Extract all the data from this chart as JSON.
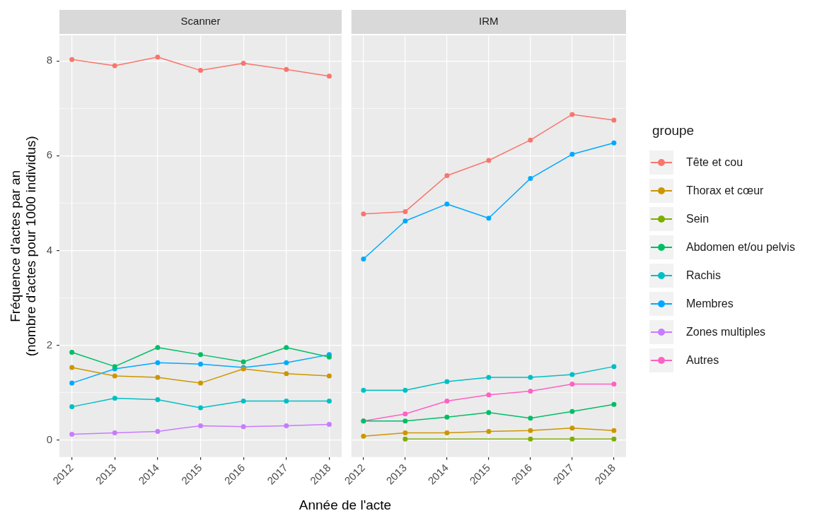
{
  "chart_data": [
    {
      "type": "line",
      "title": "Scanner",
      "xlabel": "Année de l'acte",
      "ylabel": "Fréquence d'actes par an\n(nombre d'actes pour 1000 individus)",
      "categories": [
        "2012",
        "2013",
        "2014",
        "2015",
        "2016",
        "2017",
        "2018"
      ],
      "ylim": [
        -0.36,
        8.54
      ],
      "yticks": [
        0,
        {
          "value": 1,
          "label": null
        },
        2,
        {
          "value": 3,
          "label": null
        },
        4,
        {
          "value": 5,
          "label": null
        },
        6,
        {
          "value": 7,
          "label": null
        },
        8
      ],
      "grid": true,
      "marker": "circle",
      "line_style": "solid",
      "series": [
        {
          "color": "#f8766d",
          "values": [
            8.03,
            7.9,
            8.08,
            7.8,
            7.95,
            7.82,
            7.68
          ]
        },
        {
          "color": "#cd9600",
          "values": [
            1.53,
            1.35,
            1.32,
            1.2,
            1.5,
            1.4,
            1.35
          ]
        },
        {
          "color": "#00be67",
          "values": [
            1.85,
            1.55,
            1.95,
            1.8,
            1.65,
            1.95,
            1.75
          ]
        },
        {
          "color": "#00bfc4",
          "values": [
            0.7,
            0.88,
            0.85,
            0.68,
            0.82,
            0.82,
            0.82
          ]
        },
        {
          "color": "#00a9ff",
          "values": [
            1.2,
            1.5,
            1.63,
            1.6,
            1.53,
            1.63,
            1.8
          ]
        },
        {
          "color": "#c77cff",
          "values": [
            0.12,
            0.15,
            0.18,
            0.3,
            0.28,
            0.3,
            0.33
          ]
        }
      ]
    },
    {
      "type": "line",
      "title": "IRM",
      "categories": [
        "2012",
        "2013",
        "2014",
        "2015",
        "2016",
        "2017",
        "2018"
      ],
      "ylim": [
        -0.36,
        8.54
      ],
      "yticks": [
        0,
        {
          "value": 1,
          "label": null
        },
        2,
        {
          "value": 3,
          "label": null
        },
        4,
        {
          "value": 5,
          "label": null
        },
        6,
        {
          "value": 7,
          "label": null
        },
        8
      ],
      "tick_labels": "x",
      "grid": true,
      "legend": "right",
      "legend_title": "groupe",
      "marker": "circle",
      "line_style": "solid",
      "series": [
        {
          "name": "Tête et cou",
          "color": "#f8766d",
          "values": [
            4.77,
            4.82,
            5.58,
            5.9,
            6.33,
            6.87,
            6.75
          ]
        },
        {
          "name": "Thorax et cœur",
          "color": "#cd9600",
          "values": [
            0.08,
            0.15,
            0.15,
            0.18,
            0.2,
            0.25,
            0.2
          ]
        },
        {
          "name": "Sein",
          "color": "#7cae00",
          "values": [
            null,
            0.02,
            null,
            null,
            0.02,
            0.02,
            0.02
          ]
        },
        {
          "name": "Abdomen et/ou pelvis",
          "color": "#00be67",
          "values": [
            0.4,
            0.4,
            0.48,
            0.58,
            0.46,
            0.6,
            0.75
          ]
        },
        {
          "name": "Rachis",
          "color": "#00bfc4",
          "values": [
            1.05,
            1.05,
            1.23,
            1.32,
            1.32,
            1.38,
            1.55
          ]
        },
        {
          "name": "Membres",
          "color": "#00a9ff",
          "values": [
            3.82,
            4.62,
            4.98,
            4.68,
            5.52,
            6.03,
            6.27
          ]
        },
        {
          "name": "Zones multiples",
          "color": "#c77cff",
          "values": [
            null,
            null,
            null,
            null,
            null,
            null,
            null
          ]
        },
        {
          "name": "Autres",
          "color": "#ff61c3",
          "values": [
            0.4,
            0.55,
            0.82,
            0.95,
            1.03,
            1.18,
            1.18
          ]
        }
      ]
    }
  ]
}
